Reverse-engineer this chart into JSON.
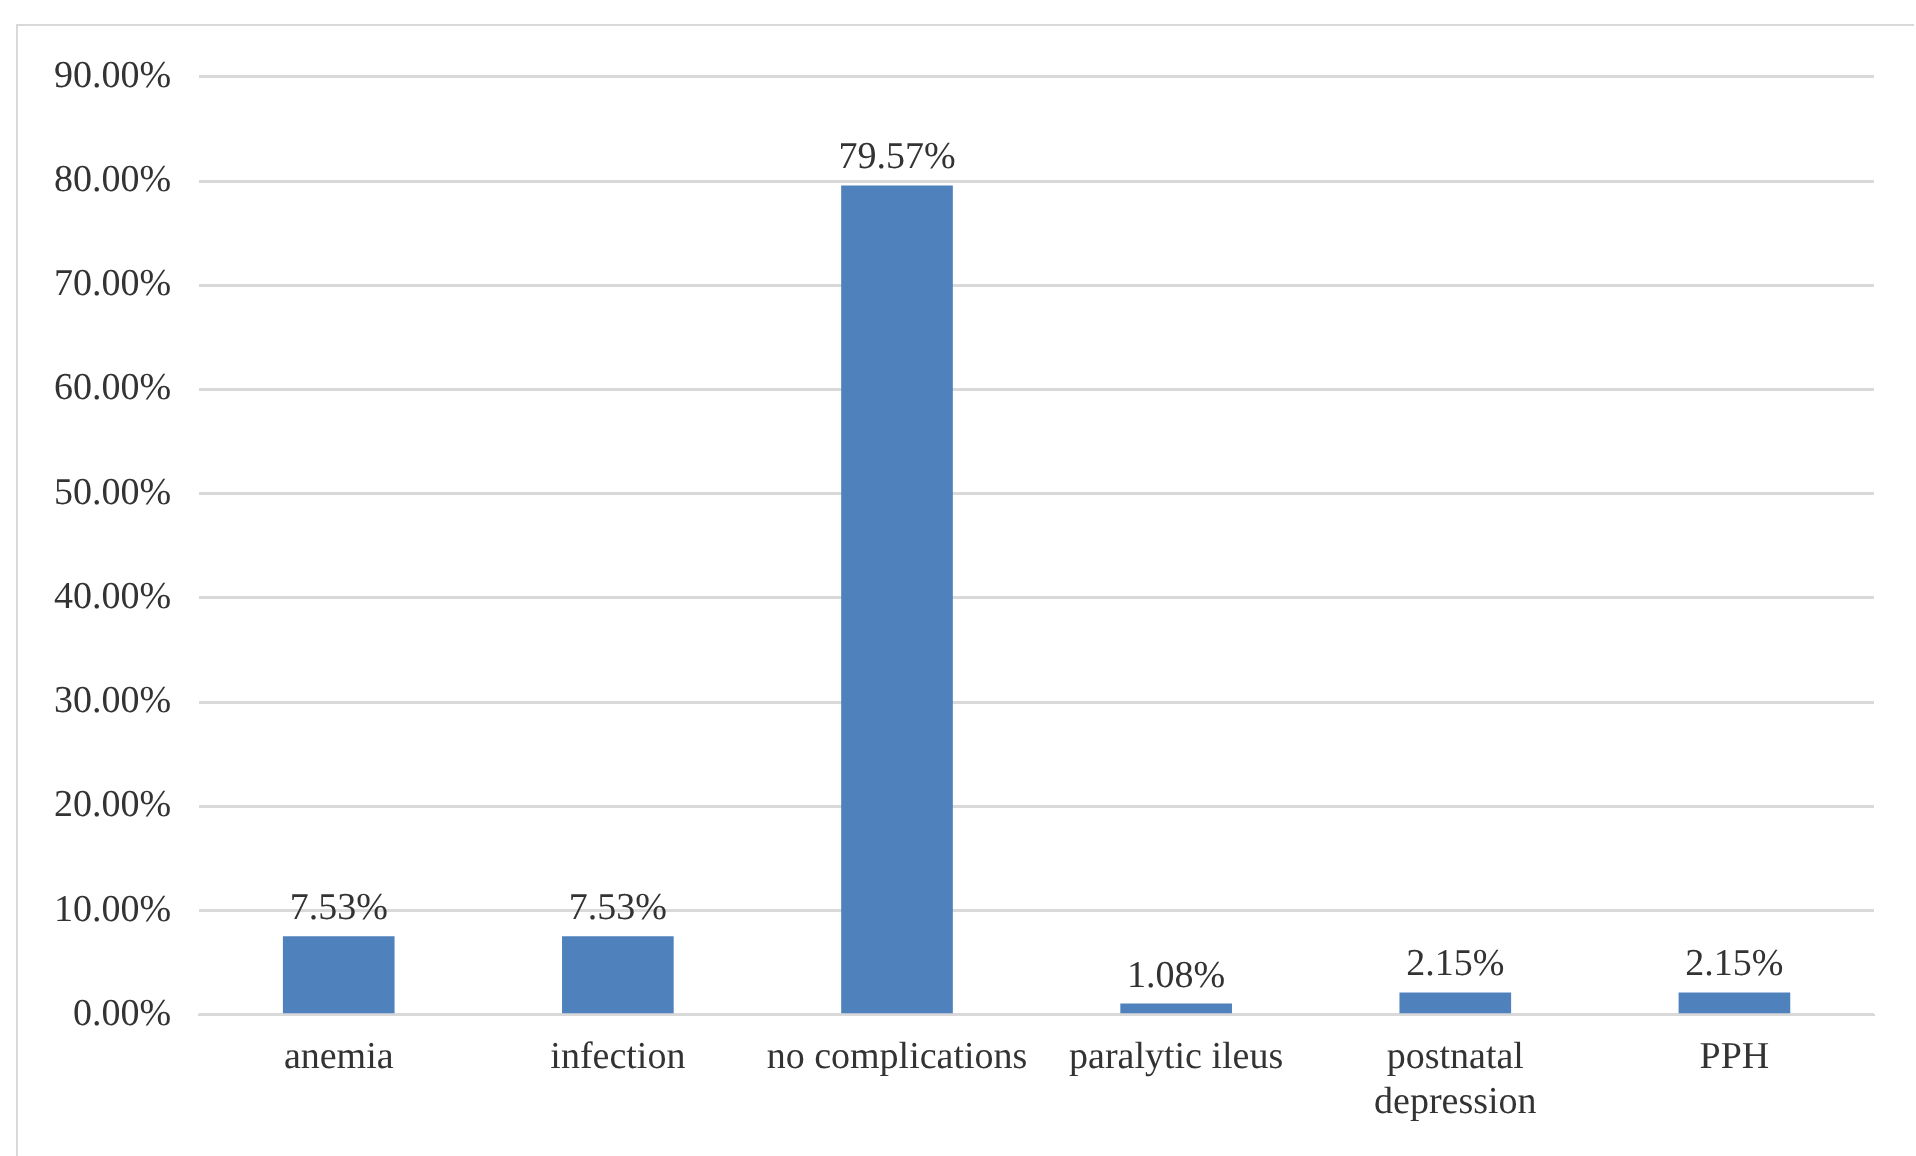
{
  "chart_data": {
    "type": "bar",
    "categories": [
      "anemia",
      "infection",
      "no complications",
      "paralytic ileus",
      "postnatal depression",
      "PPH"
    ],
    "values": [
      7.53,
      7.53,
      79.57,
      1.08,
      2.15,
      2.15
    ],
    "value_labels": [
      "7.53%",
      "7.53%",
      "79.57%",
      "1.08%",
      "2.15%",
      "2.15%"
    ],
    "color": "#4f81bd",
    "ylim": [
      0,
      90
    ],
    "yticks": [
      {
        "value": 0,
        "label": "0.00%"
      },
      {
        "value": 10,
        "label": "10.00%"
      },
      {
        "value": 20,
        "label": "20.00%"
      },
      {
        "value": 30,
        "label": "30.00%"
      },
      {
        "value": 40,
        "label": "40.00%"
      },
      {
        "value": 50,
        "label": "50.00%"
      },
      {
        "value": 60,
        "label": "60.00%"
      },
      {
        "value": 70,
        "label": "70.00%"
      },
      {
        "value": 80,
        "label": "80.00%"
      },
      {
        "value": 90,
        "label": "90.00%"
      }
    ],
    "grid": "y",
    "legend": false
  }
}
